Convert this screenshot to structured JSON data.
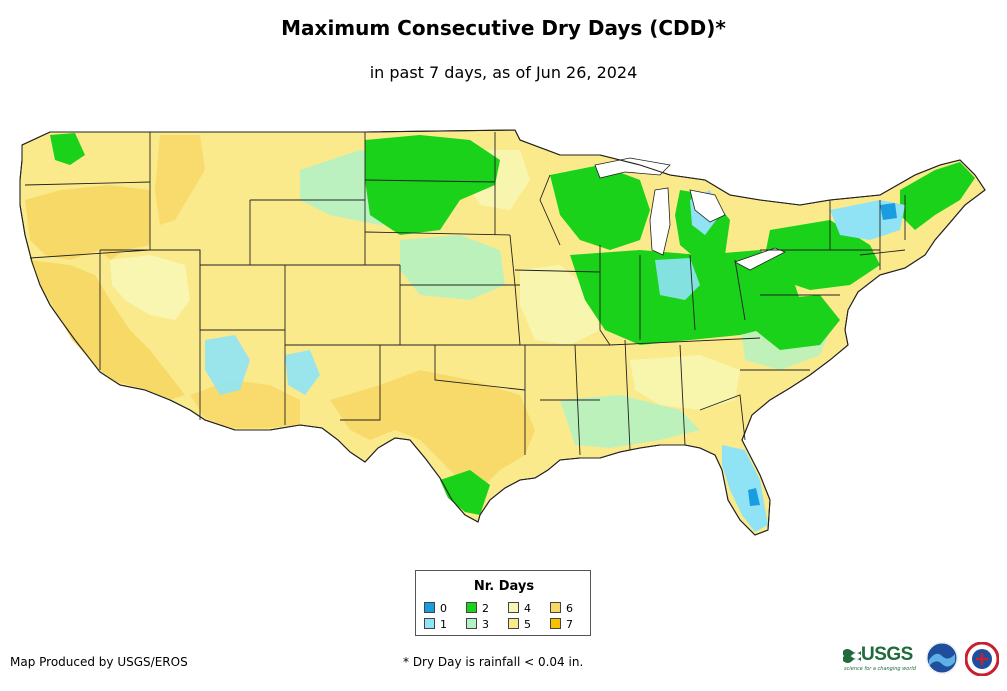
{
  "header": {
    "title": "Maximum Consecutive Dry Days (CDD)*",
    "subtitle": "in past 7 days, as of Jun 26, 2024"
  },
  "legend": {
    "title": "Nr. Days",
    "items": [
      {
        "label": "0",
        "color": "#1a9de0"
      },
      {
        "label": "1",
        "color": "#8fe3f5"
      },
      {
        "label": "2",
        "color": "#19d219"
      },
      {
        "label": "3",
        "color": "#b2f2c4"
      },
      {
        "label": "4",
        "color": "#f7f7b4"
      },
      {
        "label": "5",
        "color": "#fbea8c"
      },
      {
        "label": "6",
        "color": "#f7d866"
      },
      {
        "label": "7",
        "color": "#f6c200"
      }
    ]
  },
  "footer": {
    "credit": "Map Produced by USGS/EROS",
    "footnote": "* Dry Day is rainfall < 0.04 in."
  },
  "logos": {
    "usgs": "USGS",
    "usgs_tagline": "science for a changing world",
    "noaa_icon": "noaa-logo-icon",
    "nws_icon": "nws-logo-icon"
  },
  "map": {
    "region": "contiguous-united-states",
    "base_color": "#fbea8c",
    "state_border_color": "#222222"
  }
}
